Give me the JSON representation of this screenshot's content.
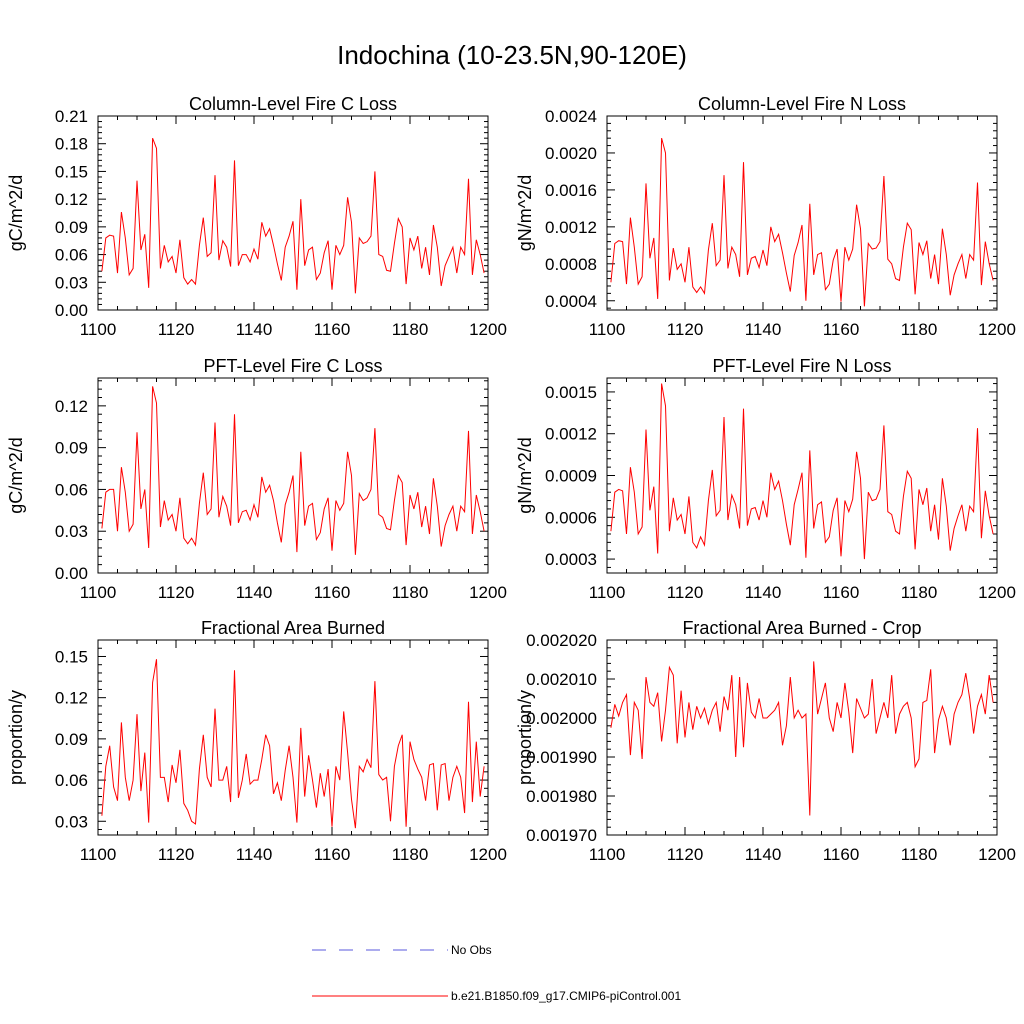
{
  "page_title": "Indochina (10-23.5N,90-120E)",
  "line_color": "#ff0000",
  "legend": {
    "entries": [
      {
        "label": "No Obs",
        "style": "dashed",
        "color": "#5a5adc"
      },
      {
        "label": "b.e21.B1850.f09_g17.CMIP6-piControl.001",
        "style": "solid",
        "color": "#ff0000"
      }
    ]
  },
  "chart_data": [
    {
      "type": "line",
      "title": "Column-Level Fire C Loss",
      "ylabel": "gC/m^2/d",
      "xlim": [
        1100,
        1200
      ],
      "ylim": [
        0,
        0.21
      ],
      "xticks": [
        "1100",
        "1120",
        "1140",
        "1160",
        "1180",
        "1200"
      ],
      "yticks": [
        "0.00",
        "0.03",
        "0.06",
        "0.09",
        "0.12",
        "0.15",
        "0.18",
        "0.21"
      ],
      "series": [
        {
          "name": "b.e21.B1850.f09_g17.CMIP6-piControl.001",
          "x_start": 1101,
          "x_step": 1,
          "values": [
            0.042,
            0.078,
            0.081,
            0.08,
            0.04,
            0.106,
            0.078,
            0.038,
            0.045,
            0.14,
            0.065,
            0.082,
            0.024,
            0.186,
            0.175,
            0.045,
            0.07,
            0.052,
            0.058,
            0.04,
            0.076,
            0.035,
            0.028,
            0.033,
            0.028,
            0.07,
            0.1,
            0.058,
            0.062,
            0.146,
            0.054,
            0.075,
            0.068,
            0.047,
            0.162,
            0.048,
            0.06,
            0.06,
            0.052,
            0.066,
            0.055,
            0.095,
            0.08,
            0.088,
            0.07,
            0.05,
            0.032,
            0.068,
            0.08,
            0.096,
            0.022,
            0.12,
            0.048,
            0.065,
            0.068,
            0.033,
            0.04,
            0.062,
            0.075,
            0.022,
            0.07,
            0.06,
            0.07,
            0.122,
            0.095,
            0.018,
            0.078,
            0.072,
            0.074,
            0.08,
            0.15,
            0.06,
            0.058,
            0.043,
            0.042,
            0.072,
            0.099,
            0.09,
            0.028,
            0.078,
            0.065,
            0.08,
            0.045,
            0.068,
            0.038,
            0.092,
            0.068,
            0.026,
            0.048,
            0.058,
            0.068,
            0.04,
            0.068,
            0.06,
            0.142,
            0.038,
            0.076,
            0.06,
            0.04
          ]
        }
      ]
    },
    {
      "type": "line",
      "title": "Column-Level Fire N Loss",
      "ylabel": "gN/m^2/d",
      "xlim": [
        1100,
        1200
      ],
      "ylim": [
        0.0003,
        0.0024
      ],
      "xticks": [
        "1100",
        "1120",
        "1140",
        "1160",
        "1180",
        "1200"
      ],
      "yticks": [
        "0.0004",
        "0.0008",
        "0.0012",
        "0.0016",
        "0.0020",
        "0.0024"
      ],
      "series": [
        {
          "name": "b.e21.B1850.f09_g17.CMIP6-piControl.001",
          "x_start": 1101,
          "x_step": 1,
          "values": [
            0.0006,
            0.00102,
            0.00105,
            0.00104,
            0.00058,
            0.0013,
            0.00098,
            0.00058,
            0.00066,
            0.00167,
            0.00086,
            0.00108,
            0.00042,
            0.00216,
            0.002,
            0.00062,
            0.00097,
            0.00074,
            0.0008,
            0.0006,
            0.00098,
            0.00055,
            0.00049,
            0.00055,
            0.00048,
            0.00095,
            0.00124,
            0.00078,
            0.00084,
            0.00176,
            0.00075,
            0.00098,
            0.0009,
            0.00066,
            0.0019,
            0.00068,
            0.00086,
            0.00088,
            0.00076,
            0.00095,
            0.00078,
            0.0012,
            0.00104,
            0.00112,
            0.00092,
            0.0007,
            0.0005,
            0.00089,
            0.00103,
            0.00122,
            0.0004,
            0.00145,
            0.00068,
            0.0009,
            0.00092,
            0.00052,
            0.00058,
            0.00084,
            0.00096,
            0.00039,
            0.00098,
            0.00084,
            0.00096,
            0.00144,
            0.00118,
            0.00034,
            0.00102,
            0.00096,
            0.00097,
            0.00104,
            0.00175,
            0.00085,
            0.0008,
            0.00064,
            0.00062,
            0.00098,
            0.00124,
            0.00117,
            0.00047,
            0.00103,
            0.0009,
            0.00105,
            0.00064,
            0.0009,
            0.00058,
            0.00118,
            0.0009,
            0.00046,
            0.00068,
            0.0008,
            0.0009,
            0.00064,
            0.0009,
            0.00084,
            0.00168,
            0.00057,
            0.00104,
            0.0008,
            0.00062
          ]
        }
      ]
    },
    {
      "type": "line",
      "title": "PFT-Level Fire C Loss",
      "ylabel": "gC/m^2/d",
      "xlim": [
        1100,
        1200
      ],
      "ylim": [
        0,
        0.14
      ],
      "xticks": [
        "1100",
        "1120",
        "1140",
        "1160",
        "1180",
        "1200"
      ],
      "yticks": [
        "0.00",
        "0.03",
        "0.06",
        "0.09",
        "0.12"
      ],
      "series": [
        {
          "name": "b.e21.B1850.f09_g17.CMIP6-piControl.001",
          "x_start": 1101,
          "x_step": 1,
          "values": [
            0.032,
            0.058,
            0.06,
            0.06,
            0.03,
            0.076,
            0.058,
            0.03,
            0.035,
            0.101,
            0.046,
            0.06,
            0.018,
            0.134,
            0.122,
            0.033,
            0.052,
            0.038,
            0.042,
            0.03,
            0.054,
            0.025,
            0.021,
            0.025,
            0.02,
            0.05,
            0.072,
            0.042,
            0.046,
            0.108,
            0.04,
            0.055,
            0.048,
            0.034,
            0.114,
            0.036,
            0.044,
            0.045,
            0.038,
            0.049,
            0.04,
            0.069,
            0.058,
            0.063,
            0.052,
            0.036,
            0.022,
            0.049,
            0.058,
            0.07,
            0.015,
            0.087,
            0.034,
            0.048,
            0.05,
            0.024,
            0.029,
            0.046,
            0.054,
            0.016,
            0.052,
            0.045,
            0.05,
            0.087,
            0.07,
            0.013,
            0.057,
            0.052,
            0.054,
            0.06,
            0.104,
            0.042,
            0.04,
            0.032,
            0.031,
            0.052,
            0.07,
            0.065,
            0.02,
            0.056,
            0.046,
            0.058,
            0.033,
            0.048,
            0.028,
            0.068,
            0.048,
            0.019,
            0.034,
            0.042,
            0.048,
            0.03,
            0.048,
            0.044,
            0.102,
            0.028,
            0.056,
            0.044,
            0.03
          ]
        }
      ]
    },
    {
      "type": "line",
      "title": "PFT-Level Fire N Loss",
      "ylabel": "gN/m^2/d",
      "xlim": [
        1100,
        1200
      ],
      "ylim": [
        0.0002,
        0.0016
      ],
      "xticks": [
        "1100",
        "1120",
        "1140",
        "1160",
        "1180",
        "1200"
      ],
      "yticks": [
        "0.0003",
        "0.0006",
        "0.0009",
        "0.0012",
        "0.0015"
      ],
      "series": [
        {
          "name": "b.e21.B1850.f09_g17.CMIP6-piControl.001",
          "x_start": 1101,
          "x_step": 1,
          "values": [
            0.0005,
            0.00078,
            0.0008,
            0.00079,
            0.00048,
            0.00096,
            0.00078,
            0.00048,
            0.00053,
            0.00123,
            0.00065,
            0.00082,
            0.00034,
            0.00156,
            0.0014,
            0.0005,
            0.00074,
            0.00058,
            0.00062,
            0.00048,
            0.00075,
            0.00042,
            0.00038,
            0.00046,
            0.0004,
            0.00072,
            0.00094,
            0.00061,
            0.00065,
            0.00132,
            0.00058,
            0.00076,
            0.00069,
            0.00052,
            0.00138,
            0.00054,
            0.00066,
            0.00067,
            0.00058,
            0.00072,
            0.0006,
            0.00092,
            0.0008,
            0.00086,
            0.00072,
            0.00055,
            0.0004,
            0.00069,
            0.0008,
            0.00092,
            0.00031,
            0.00108,
            0.00052,
            0.00069,
            0.00071,
            0.00042,
            0.00046,
            0.00065,
            0.00074,
            0.00032,
            0.00072,
            0.00064,
            0.00073,
            0.00107,
            0.00088,
            0.0003,
            0.00078,
            0.00072,
            0.00073,
            0.0008,
            0.00126,
            0.00064,
            0.00062,
            0.0005,
            0.00048,
            0.00075,
            0.00093,
            0.00088,
            0.00037,
            0.0008,
            0.00069,
            0.00081,
            0.0005,
            0.00069,
            0.00044,
            0.00088,
            0.00068,
            0.00036,
            0.00052,
            0.00061,
            0.00069,
            0.0005,
            0.00068,
            0.00064,
            0.00124,
            0.00045,
            0.00079,
            0.00061,
            0.00048
          ]
        }
      ]
    },
    {
      "type": "line",
      "title": "Fractional Area Burned",
      "ylabel": "proportion/y",
      "xlim": [
        1100,
        1200
      ],
      "ylim": [
        0.02,
        0.162
      ],
      "xticks": [
        "1100",
        "1120",
        "1140",
        "1160",
        "1180",
        "1200"
      ],
      "yticks": [
        "0.03",
        "0.06",
        "0.09",
        "0.12",
        "0.15"
      ],
      "series": [
        {
          "name": "b.e21.B1850.f09_g17.CMIP6-piControl.001",
          "x_start": 1101,
          "x_step": 1,
          "values": [
            0.034,
            0.07,
            0.085,
            0.055,
            0.045,
            0.102,
            0.062,
            0.045,
            0.06,
            0.108,
            0.052,
            0.08,
            0.029,
            0.131,
            0.148,
            0.062,
            0.062,
            0.044,
            0.071,
            0.058,
            0.082,
            0.043,
            0.038,
            0.03,
            0.028,
            0.068,
            0.093,
            0.062,
            0.055,
            0.112,
            0.06,
            0.06,
            0.07,
            0.044,
            0.14,
            0.047,
            0.06,
            0.079,
            0.057,
            0.06,
            0.06,
            0.075,
            0.093,
            0.085,
            0.05,
            0.058,
            0.045,
            0.067,
            0.085,
            0.062,
            0.029,
            0.098,
            0.048,
            0.078,
            0.06,
            0.04,
            0.065,
            0.048,
            0.068,
            0.026,
            0.07,
            0.06,
            0.11,
            0.08,
            0.046,
            0.025,
            0.07,
            0.066,
            0.075,
            0.069,
            0.132,
            0.064,
            0.06,
            0.062,
            0.03,
            0.07,
            0.085,
            0.093,
            0.026,
            0.088,
            0.075,
            0.068,
            0.062,
            0.045,
            0.071,
            0.072,
            0.038,
            0.071,
            0.072,
            0.045,
            0.062,
            0.07,
            0.062,
            0.036,
            0.117,
            0.044,
            0.088,
            0.048,
            0.07
          ]
        }
      ]
    },
    {
      "type": "line",
      "title": "Fractional Area Burned - Crop",
      "ylabel": "proportion/y",
      "xlim": [
        1100,
        1200
      ],
      "ylim": [
        0.00197,
        0.00202
      ],
      "xticks": [
        "1100",
        "1120",
        "1140",
        "1160",
        "1180",
        "1200"
      ],
      "yticks": [
        "0.001970",
        "0.001980",
        "0.001990",
        "0.002000",
        "0.002010",
        "0.002020"
      ],
      "series": [
        {
          "name": "b.e21.B1850.f09_g17.CMIP6-piControl.001",
          "x_start": 1101,
          "x_step": 1,
          "values": [
            0.0019975,
            0.0020035,
            0.0020005,
            0.002004,
            0.002006,
            0.0019905,
            0.002004,
            0.002002,
            0.0019895,
            0.0020105,
            0.002004,
            0.002003,
            0.0020065,
            0.001994,
            0.002002,
            0.002013,
            0.002011,
            0.0019935,
            0.002007,
            0.001995,
            0.002004,
            0.001997,
            0.002003,
            0.002,
            0.0020025,
            0.0019985,
            0.002002,
            0.002004,
            0.0019965,
            0.0020055,
            0.002002,
            0.002011,
            0.00199,
            0.0020105,
            0.0019925,
            0.002009,
            0.0020015,
            0.002,
            0.002005,
            0.002,
            0.002,
            0.002001,
            0.002002,
            0.002004,
            0.001993,
            0.001998,
            0.0020105,
            0.002,
            0.002002,
            0.002,
            0.002001,
            0.001975,
            0.0020145,
            0.002001,
            0.002005,
            0.002009,
            0.002,
            0.0019965,
            0.002004,
            0.002,
            0.002009,
            0.0020015,
            0.001991,
            0.002005,
            0.0020025,
            0.002,
            0.002001,
            0.00201,
            0.001996,
            0.002,
            0.002004,
            0.002,
            0.002011,
            0.001996,
            0.002001,
            0.002003,
            0.002004,
            0.002,
            0.0019875,
            0.0019895,
            0.002004,
            0.0020045,
            0.0020125,
            0.001991,
            0.0019995,
            0.002003,
            0.002,
            0.001993,
            0.002001,
            0.002004,
            0.002006,
            0.0020115,
            0.002005,
            0.001996,
            0.002003,
            0.002006,
            0.002001,
            0.002011,
            0.002004
          ]
        }
      ]
    }
  ]
}
